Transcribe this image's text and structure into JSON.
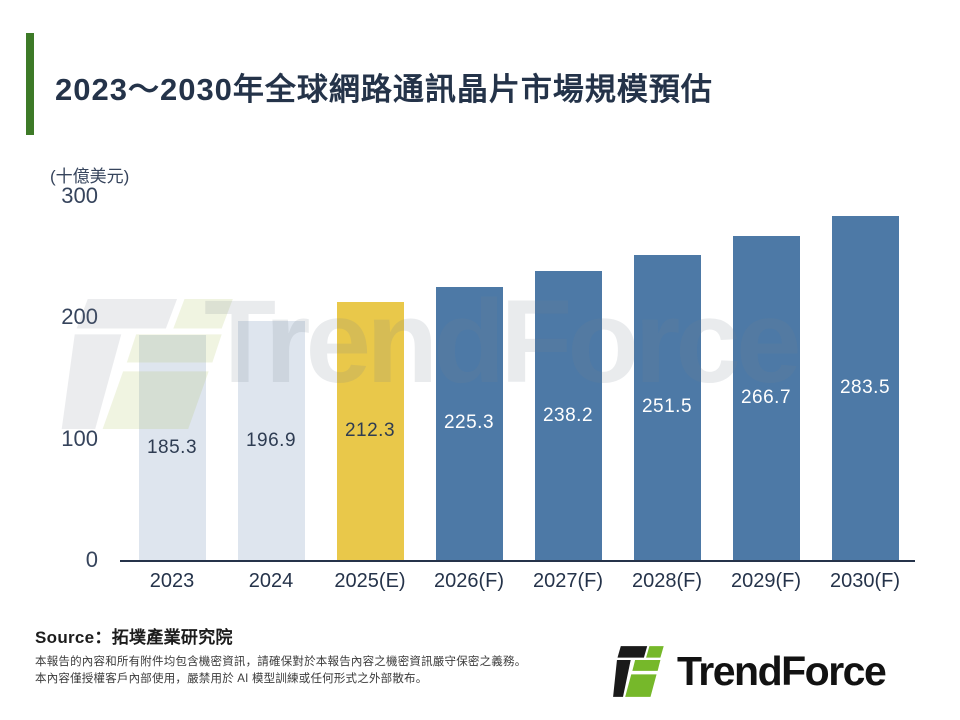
{
  "chart_data": {
    "type": "bar",
    "title": "2023～2030年全球網路通訊晶片市場規模預估",
    "unit_label": "(十億美元)",
    "categories": [
      "2023",
      "2024",
      "2025(E)",
      "2026(F)",
      "2027(F)",
      "2028(F)",
      "2029(F)",
      "2030(F)"
    ],
    "values": [
      185.3,
      196.9,
      212.3,
      225.3,
      238.2,
      251.5,
      266.7,
      283.5
    ],
    "bar_colors": [
      "#DEE5EE",
      "#DEE5EE",
      "#E9C84A",
      "#4D79A6",
      "#4D79A6",
      "#4D79A6",
      "#4D79A6",
      "#4D79A6"
    ],
    "value_label_colors": [
      "#2E3C52",
      "#2E3C52",
      "#2E3C52",
      "#FFFFFF",
      "#FFFFFF",
      "#FFFFFF",
      "#FFFFFF",
      "#FFFFFF"
    ],
    "xlabel": "",
    "ylabel": "(十億美元)",
    "ylim": [
      0,
      300
    ],
    "yticks": [
      0,
      100,
      200,
      300
    ],
    "grid": false,
    "legend": null
  },
  "watermark": {
    "logo_text": "TrendForce"
  },
  "footer": {
    "source_label": "Source：拓墣產業研究院",
    "disclaimer_lines": [
      "本報告的內容和所有附件均包含機密資訊，請確保對於本報告內容之機密資訊嚴守保密之義務。",
      "本內容僅授權客戶內部使用，嚴禁用於 AI 模型訓練或任何形式之外部散布。"
    ],
    "brand_name": "TrendForce"
  },
  "colors": {
    "accent_green": "#3D7A27",
    "title_text": "#243349",
    "axis_text": "#36445C",
    "baseline": "#25334A",
    "bar_light": "#DEE5EE",
    "bar_yellow": "#E9C84A",
    "bar_blue": "#4D79A6",
    "watermark_text": "rgba(120,130,142,0.16)",
    "watermark_gray": "rgba(120,130,142,0.15)",
    "watermark_green": "rgba(170,196,90,0.18)",
    "logo_black": "#1A1A1A",
    "logo_green": "#76B82A"
  }
}
